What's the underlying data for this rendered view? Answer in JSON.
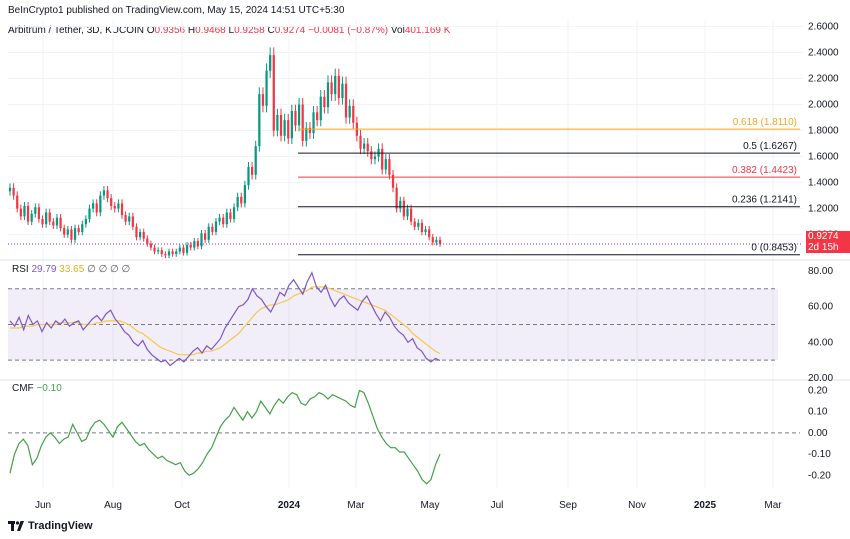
{
  "publisher": "BeInCrypto1 published on TradingView.com, May 15, 2024 14:51 UTC+5:30",
  "legend": {
    "symbol": "Arbitrum / Tether, 3D, KUCOIN",
    "o_key": "O",
    "o": "0.9356",
    "h_key": "H",
    "h": "0.9468",
    "l_key": "L",
    "l": "0.9258",
    "c_key": "C",
    "c": "0.9274",
    "change": "−0.0081 (−0.87%)",
    "vol_key": "Vol",
    "vol": "401.169 K"
  },
  "price_tag": {
    "value": "0.9274",
    "countdown": "2d 15h"
  },
  "rsi_legend": {
    "label": "RSI",
    "v1": "29.79",
    "v2": "33.65",
    "extras": "∅ ∅ ∅ ∅"
  },
  "cmf_legend": {
    "label": "CMF",
    "v1": "−0.10"
  },
  "footer": {
    "brand": "TradingView"
  },
  "colors": {
    "up": "#089981",
    "down": "#f23645",
    "rsi": "#7e57c2",
    "rsi_ma": "#f7c948",
    "cmf": "#43a047",
    "fib_618": "#f5a623",
    "fib_382": "#f23645",
    "fib_other": "#131722",
    "price_line": "#9c27b0"
  },
  "chart_data": [
    {
      "type": "candlestick",
      "title": "Arbitrum / Tether, 3D, KUCOIN",
      "x_ticks": [
        "Jun",
        "Aug",
        "Oct",
        "2024",
        "Mar",
        "May",
        "Jul",
        "Sep",
        "Nov",
        "2025",
        "Mar"
      ],
      "y_ticks": [
        "2.6000",
        "2.4000",
        "2.2000",
        "2.0000",
        "1.8000",
        "1.6000",
        "1.4000",
        "1.2000",
        "1.0000"
      ],
      "ylim": [
        0.82,
        2.65
      ],
      "last_price": 0.9274,
      "fib_levels": [
        {
          "ratio": "0.618",
          "price": 1.811,
          "label": "0.618 (1.8110)",
          "color": "#f5a623"
        },
        {
          "ratio": "0.5",
          "price": 1.6267,
          "label": "0.5 (1.6267)",
          "color": "#131722"
        },
        {
          "ratio": "0.382",
          "price": 1.4423,
          "label": "0.382 (1.4423)",
          "color": "#f23645"
        },
        {
          "ratio": "0.236",
          "price": 1.2141,
          "label": "0.236 (1.2141)",
          "color": "#131722"
        },
        {
          "ratio": "0",
          "price": 0.8453,
          "label": "0 (0.8453)",
          "color": "#131722"
        }
      ],
      "closes": [
        1.36,
        1.3,
        1.2,
        1.14,
        1.22,
        1.1,
        1.16,
        1.21,
        1.12,
        1.08,
        1.17,
        1.1,
        1.07,
        1.13,
        1.05,
        1.0,
        1.04,
        0.96,
        1.05,
        1.02,
        1.08,
        1.12,
        1.2,
        1.24,
        1.17,
        1.3,
        1.34,
        1.28,
        1.22,
        1.2,
        1.24,
        1.15,
        1.1,
        1.14,
        1.06,
        0.98,
        1.02,
        0.97,
        0.93,
        0.9,
        0.87,
        0.88,
        0.85,
        0.84,
        0.87,
        0.85,
        0.87,
        0.9,
        0.86,
        0.92,
        0.9,
        0.95,
        0.91,
        1.01,
        0.96,
        1.06,
        1.02,
        1.1,
        1.13,
        1.08,
        1.17,
        1.12,
        1.21,
        1.29,
        1.24,
        1.38,
        1.52,
        1.46,
        1.68,
        2.08,
        1.99,
        2.26,
        2.38,
        1.8,
        1.92,
        1.76,
        1.88,
        1.74,
        1.95,
        1.84,
        2.0,
        1.72,
        1.82,
        1.78,
        1.94,
        1.88,
        2.06,
        1.98,
        2.17,
        2.08,
        2.22,
        2.05,
        2.16,
        1.9,
        1.99,
        1.86,
        1.76,
        1.66,
        1.7,
        1.64,
        1.58,
        1.6,
        1.66,
        1.5,
        1.58,
        1.46,
        1.36,
        1.2,
        1.26,
        1.14,
        1.2,
        1.1,
        1.06,
        1.09,
        1.02,
        1.04,
        0.98,
        0.94,
        0.96,
        0.93
      ],
      "rsi": [
        52,
        49,
        54,
        47,
        55,
        50,
        52,
        46,
        51,
        48,
        52,
        50,
        53,
        49,
        51,
        52,
        47,
        50,
        53,
        55,
        52,
        56,
        58,
        53,
        50,
        46,
        44,
        40,
        38,
        41,
        36,
        33,
        31,
        29,
        30,
        27,
        29,
        31,
        29,
        32,
        35,
        37,
        34,
        38,
        36,
        39,
        42,
        48,
        52,
        56,
        60,
        61,
        64,
        70,
        66,
        64,
        60,
        57,
        62,
        68,
        66,
        72,
        75,
        71,
        67,
        74,
        79,
        71,
        68,
        72,
        65,
        60,
        64,
        66,
        62,
        60,
        58,
        63,
        66,
        61,
        56,
        52,
        57,
        54,
        49,
        46,
        44,
        40,
        42,
        37,
        35,
        31,
        29,
        31,
        29.79
      ],
      "rsi_ma": [
        48,
        48,
        48,
        49,
        49,
        49,
        50,
        50,
        50,
        50,
        50,
        51,
        51,
        51,
        51,
        51,
        50,
        50,
        50,
        51,
        51,
        52,
        52,
        52,
        52,
        51,
        50,
        48,
        46,
        45,
        43,
        41,
        39,
        37,
        36,
        35,
        34,
        33,
        33,
        33,
        33,
        34,
        34,
        35,
        35,
        36,
        37,
        39,
        41,
        43,
        45,
        48,
        51,
        54,
        57,
        59,
        60,
        61,
        61,
        62,
        63,
        64,
        66,
        67,
        68,
        69,
        71,
        71,
        71,
        71,
        70,
        69,
        68,
        67,
        66,
        65,
        64,
        63,
        62,
        61,
        60,
        59,
        58,
        56,
        54,
        52,
        50,
        48,
        45,
        43,
        41,
        39,
        37,
        35,
        33.65
      ],
      "cmf": [
        -0.19,
        -0.1,
        -0.05,
        -0.03,
        -0.06,
        -0.15,
        -0.12,
        -0.06,
        -0.02,
        0.0,
        -0.02,
        -0.05,
        -0.03,
        -0.02,
        0.04,
        0.0,
        -0.04,
        -0.03,
        0.02,
        0.05,
        0.06,
        0.04,
        0.01,
        -0.02,
        0.03,
        0.05,
        0.02,
        -0.01,
        -0.04,
        -0.06,
        -0.05,
        -0.08,
        -0.1,
        -0.12,
        -0.11,
        -0.13,
        -0.14,
        -0.15,
        -0.14,
        -0.18,
        -0.2,
        -0.19,
        -0.17,
        -0.14,
        -0.1,
        -0.07,
        -0.02,
        0.03,
        0.06,
        0.08,
        0.12,
        0.09,
        0.06,
        0.1,
        0.07,
        0.1,
        0.15,
        0.12,
        0.09,
        0.13,
        0.16,
        0.14,
        0.17,
        0.19,
        0.18,
        0.14,
        0.13,
        0.16,
        0.17,
        0.19,
        0.18,
        0.16,
        0.18,
        0.17,
        0.16,
        0.15,
        0.13,
        0.12,
        0.2,
        0.19,
        0.14,
        0.08,
        0.02,
        -0.02,
        -0.05,
        -0.07,
        -0.07,
        -0.09,
        -0.09,
        -0.12,
        -0.15,
        -0.18,
        -0.22,
        -0.24,
        -0.22,
        -0.15,
        -0.1
      ],
      "rsi_axis": {
        "ticks": [
          "80.00",
          "60.00",
          "40.00",
          "20.00"
        ],
        "ylim": [
          20,
          85
        ],
        "bands": [
          30,
          50,
          70
        ]
      },
      "cmf_axis": {
        "ticks": [
          "0.20",
          "0.10",
          "0.00",
          "-0.10",
          "-0.20"
        ],
        "ylim": [
          -0.26,
          0.24
        ],
        "zero": 0
      }
    }
  ]
}
